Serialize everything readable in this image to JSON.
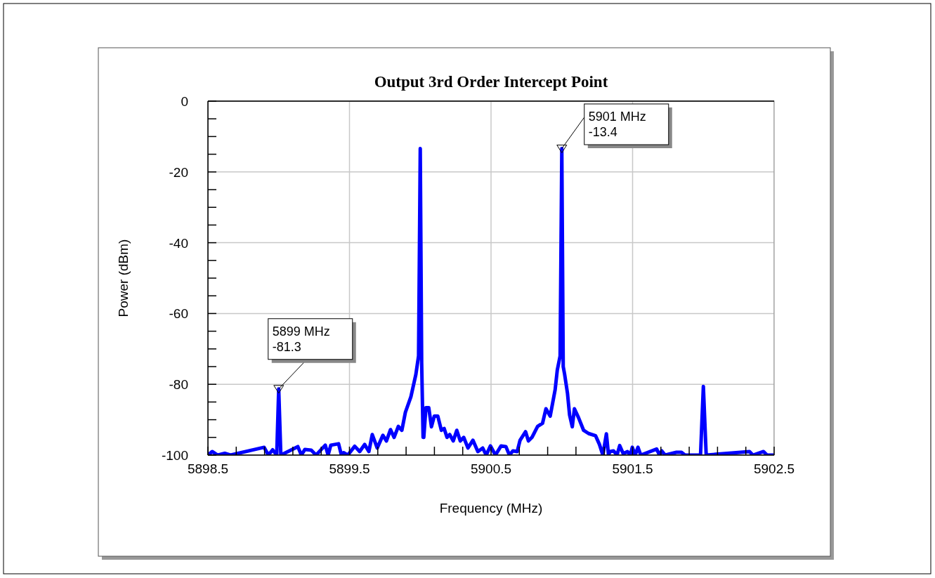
{
  "chart_data": {
    "type": "line",
    "title": "Output 3rd Order Intercept Point",
    "xlabel": "Frequency (MHz)",
    "ylabel": "Power (dBm)",
    "xlim": [
      5898.5,
      5902.5
    ],
    "xticks": [
      5898.5,
      {
        "value": 5898.7,
        "label": null
      },
      {
        "value": 5898.9,
        "label": null
      },
      {
        "value": 5899.1,
        "label": null
      },
      {
        "value": 5899.3,
        "label": null
      },
      5899.5,
      {
        "value": 5899.7,
        "label": null
      },
      {
        "value": 5899.9,
        "label": null
      },
      {
        "value": 5900.1,
        "label": null
      },
      {
        "value": 5900.3,
        "label": null
      },
      5900.5,
      {
        "value": 5900.7,
        "label": null
      },
      {
        "value": 5900.9,
        "label": null
      },
      {
        "value": 5901.1,
        "label": null
      },
      {
        "value": 5901.3,
        "label": null
      },
      5901.5,
      {
        "value": 5901.7,
        "label": null
      },
      {
        "value": 5901.9,
        "label": null
      },
      {
        "value": 5902.1,
        "label": null
      },
      {
        "value": 5902.3,
        "label": null
      },
      5902.5
    ],
    "ylim": [
      -100,
      0
    ],
    "yticks": [
      -100,
      {
        "value": -95,
        "label": null
      },
      {
        "value": -90,
        "label": null
      },
      {
        "value": -85,
        "label": null
      },
      -80,
      {
        "value": -75,
        "label": null
      },
      {
        "value": -70,
        "label": null
      },
      {
        "value": -65,
        "label": null
      },
      -60,
      {
        "value": -55,
        "label": null
      },
      {
        "value": -50,
        "label": null
      },
      {
        "value": -45,
        "label": null
      },
      -40,
      {
        "value": -35,
        "label": null
      },
      {
        "value": -30,
        "label": null
      },
      {
        "value": -25,
        "label": null
      },
      -20,
      {
        "value": -15,
        "label": null
      },
      {
        "value": -10,
        "label": null
      },
      {
        "value": -5,
        "label": null
      },
      0
    ],
    "grid": true,
    "annotations": [
      {
        "text": "5899 MHz\n-81.3",
        "x": 5899,
        "y": -81.3
      },
      {
        "text": "5901 MHz\n-13.4",
        "x": 5901,
        "y": -13.4
      }
    ],
    "series": [
      {
        "color": "#0000ff",
        "x": [
          5898.5,
          5898.53,
          5898.569,
          5898.619,
          5898.659,
          5898.897,
          5898.927,
          5898.957,
          5898.986,
          5899.0,
          5899.015,
          5899.135,
          5899.16,
          5899.185,
          5899.23,
          5899.264,
          5899.329,
          5899.349,
          5899.368,
          5899.423,
          5899.443,
          5899.458,
          5899.488,
          5899.537,
          5899.572,
          5899.607,
          5899.637,
          5899.661,
          5899.696,
          5899.736,
          5899.761,
          5899.79,
          5899.815,
          5899.845,
          5899.87,
          5899.895,
          5899.934,
          5899.969,
          5899.988,
          5900.0,
          5900.01,
          5900.02,
          5900.025,
          5900.04,
          5900.06,
          5900.079,
          5900.099,
          5900.124,
          5900.149,
          5900.169,
          5900.189,
          5900.208,
          5900.233,
          5900.258,
          5900.283,
          5900.307,
          5900.337,
          5900.372,
          5900.407,
          5900.441,
          5900.466,
          5900.496,
          5900.531,
          5900.571,
          5900.605,
          5900.63,
          5900.655,
          5900.685,
          5900.705,
          5900.744,
          5900.764,
          5900.789,
          5900.829,
          5900.864,
          5900.888,
          5900.918,
          5900.953,
          5900.968,
          5900.988,
          5901.0,
          5901.01,
          5901.02,
          5901.04,
          5901.055,
          5901.074,
          5901.089,
          5901.119,
          5901.154,
          5901.189,
          5901.238,
          5901.266,
          5901.29,
          5901.315,
          5901.33,
          5901.34,
          5901.365,
          5901.39,
          5901.409,
          5901.434,
          5901.464,
          5901.484,
          5901.498,
          5901.518,
          5901.538,
          5901.558,
          5901.67,
          5901.69,
          5901.706,
          5901.73,
          5901.81,
          5901.845,
          5901.87,
          5901.98,
          5902.0,
          5902.02,
          5902.326,
          5902.35,
          5902.425,
          5902.45,
          5902.5
        ],
        "values": [
          -100,
          -99,
          -100,
          -99.5,
          -100,
          -97.8,
          -100,
          -98.5,
          -100,
          -81.3,
          -100,
          -97.6,
          -100,
          -98.4,
          -98.6,
          -100,
          -97.2,
          -100,
          -97.2,
          -96.8,
          -100,
          -99.3,
          -100,
          -97.5,
          -99,
          -97,
          -99,
          -94.2,
          -98,
          -94.4,
          -96,
          -92.8,
          -95,
          -91.9,
          -93,
          -87.9,
          -83.5,
          -77.2,
          -72,
          -13.4,
          -74,
          -95,
          -95,
          -86.6,
          -86.6,
          -92,
          -89,
          -89,
          -93,
          -92.5,
          -95,
          -94.2,
          -96,
          -93,
          -96,
          -95,
          -98,
          -95.8,
          -99,
          -98,
          -100,
          -97.4,
          -100,
          -97.4,
          -97.6,
          -100,
          -98.8,
          -99,
          -95.8,
          -93.4,
          -96,
          -95,
          -91.9,
          -91,
          -86.9,
          -89,
          -81.5,
          -76,
          -72,
          -13.4,
          -75,
          -77.2,
          -82.5,
          -88.7,
          -92,
          -86.9,
          -89.5,
          -93,
          -93.9,
          -94.5,
          -97,
          -100,
          -94,
          -100,
          -99,
          -98.8,
          -100,
          -97.3,
          -99.6,
          -99,
          -100,
          -97.8,
          -100,
          -97.8,
          -100,
          -98.3,
          -100,
          -98.8,
          -100,
          -99.2,
          -99.2,
          -100,
          -100,
          -80.6,
          -100,
          -99,
          -100,
          -99,
          -100,
          -100
        ]
      }
    ]
  }
}
